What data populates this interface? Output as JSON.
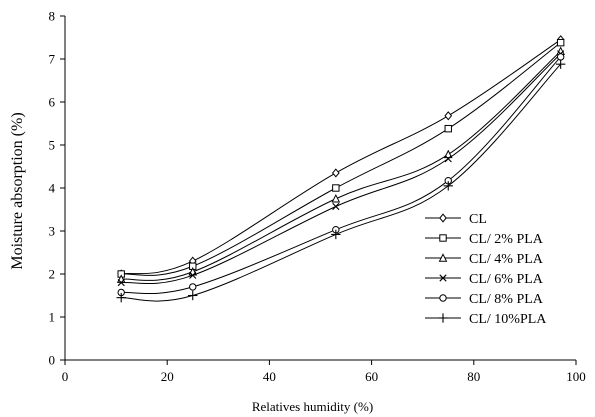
{
  "chart_data": {
    "type": "line",
    "title": "",
    "xlabel": "Relatives  humidity (%)",
    "ylabel": "Moisture absorption (%)",
    "xlim": [
      0,
      100
    ],
    "ylim": [
      0,
      8
    ],
    "xticks": [
      0,
      20,
      40,
      60,
      80,
      100
    ],
    "yticks": [
      0,
      1,
      2,
      3,
      4,
      5,
      6,
      7,
      8
    ],
    "grid": false,
    "legend_position": "right",
    "x": [
      11,
      25,
      53,
      75,
      97
    ],
    "series": [
      {
        "name": "CL",
        "marker": "diamond",
        "values": [
          2.0,
          2.3,
          4.35,
          5.68,
          7.45
        ]
      },
      {
        "name": "CL/ 2% PLA",
        "marker": "square",
        "values": [
          2.0,
          2.18,
          4.0,
          5.38,
          7.38
        ]
      },
      {
        "name": "CL/ 4% PLA",
        "marker": "triangle",
        "values": [
          1.88,
          2.05,
          3.75,
          4.78,
          7.18
        ]
      },
      {
        "name": "CL/ 6% PLA",
        "marker": "x",
        "values": [
          1.8,
          1.97,
          3.57,
          4.68,
          7.12
        ]
      },
      {
        "name": "CL/ 8% PLA",
        "marker": "circle",
        "values": [
          1.57,
          1.7,
          3.03,
          4.17,
          7.05
        ]
      },
      {
        "name": "CL/ 10%PLA",
        "marker": "plus",
        "values": [
          1.45,
          1.5,
          2.92,
          4.05,
          6.88
        ]
      }
    ],
    "line_color": "#000000"
  }
}
